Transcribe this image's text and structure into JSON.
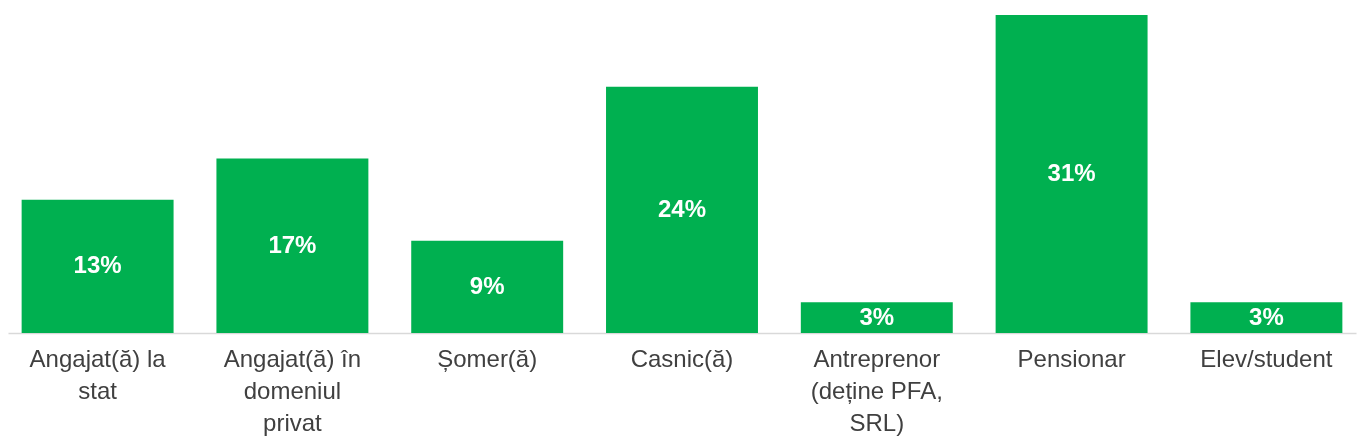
{
  "chart_data": {
    "type": "bar",
    "categories": [
      "Angajat(ă) la stat",
      "Angajat(ă) în domeniul privat",
      "Șomer(ă)",
      "Casnic(ă)",
      "Antreprenor (deține PFA, SRL)",
      "Pensionar",
      "Elev/student"
    ],
    "values": [
      13,
      17,
      9,
      24,
      3,
      31,
      3
    ],
    "color": "#00b050",
    "data_labels": true,
    "value_labels": [
      "13%",
      "17%",
      "9%",
      "24%",
      "3%",
      "31%",
      "3%"
    ]
  }
}
